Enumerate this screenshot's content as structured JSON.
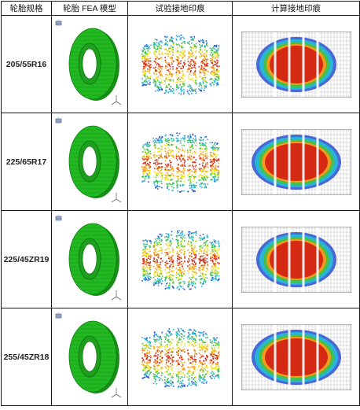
{
  "headers": {
    "spec": "轮胎规格",
    "model": "轮胎 FEA 模型",
    "test": "试验接地印痕",
    "calc": "计算接地印痕"
  },
  "rows": [
    {
      "spec": "205/55R16"
    },
    {
      "spec": "225/65R17"
    },
    {
      "spec": "225/45ZR19"
    },
    {
      "spec": "255/45ZR18"
    }
  ],
  "colors": {
    "tire_green": "#22b822",
    "contact_red": "#d42a14",
    "contact_orange": "#f59a1a",
    "contact_yellow": "#f2e21d",
    "contact_green": "#46c04a",
    "contact_cyan": "#28b5d8",
    "contact_blue": "#2b4fd0",
    "mesh_gray": "#9a9a9a"
  },
  "icons": {
    "model_thumbnail": "tire-mesh-icon",
    "axis_triad": "axis-triad-icon"
  }
}
